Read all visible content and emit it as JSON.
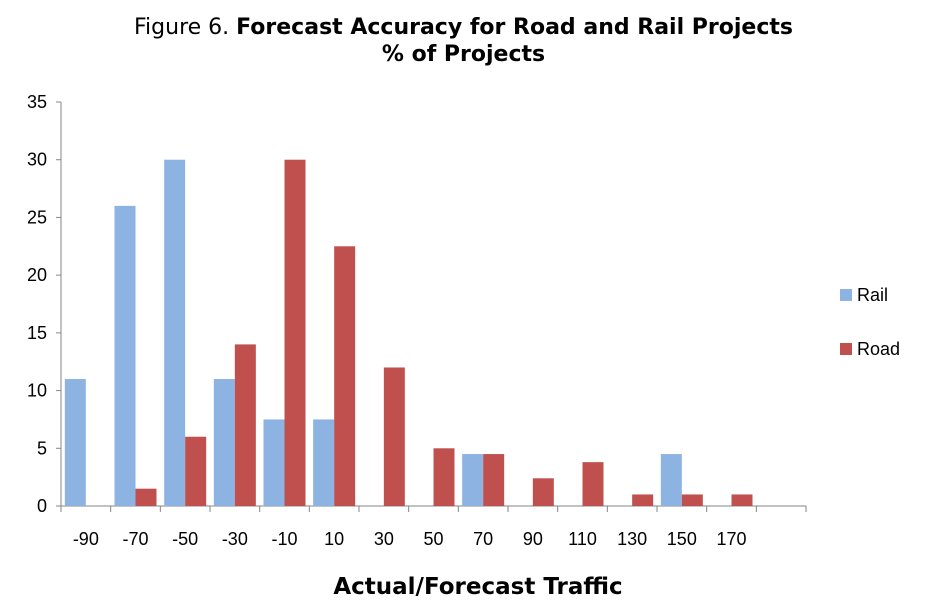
{
  "chart_data": {
    "type": "bar",
    "title_prefix": "Figure 6.",
    "title_main": "Forecast Accuracy for Road and Rail Projects",
    "subtitle": "% of Projects",
    "xlabel": "Actual/Forecast Traffic",
    "ylabel": "",
    "ylim": [
      0,
      35
    ],
    "yticks": [
      0,
      5,
      10,
      15,
      20,
      25,
      30,
      35
    ],
    "categories": [
      "-90",
      "-70",
      "-50",
      "-30",
      "-10",
      "10",
      "30",
      "50",
      "70",
      "90",
      "110",
      "130",
      "150",
      "170",
      ""
    ],
    "series": [
      {
        "name": "Rail",
        "color": "#8db3e2",
        "values": [
          11,
          26,
          30,
          11,
          7.5,
          7.5,
          0,
          0,
          4.5,
          0,
          0,
          0,
          4.5,
          0,
          0
        ]
      },
      {
        "name": "Road",
        "color": "#c0504d",
        "values": [
          0,
          1.5,
          6,
          14,
          30,
          22.5,
          12,
          5,
          4.5,
          2.4,
          3.8,
          1,
          1,
          1,
          0
        ]
      }
    ],
    "grid": false,
    "legend_position": "right"
  }
}
